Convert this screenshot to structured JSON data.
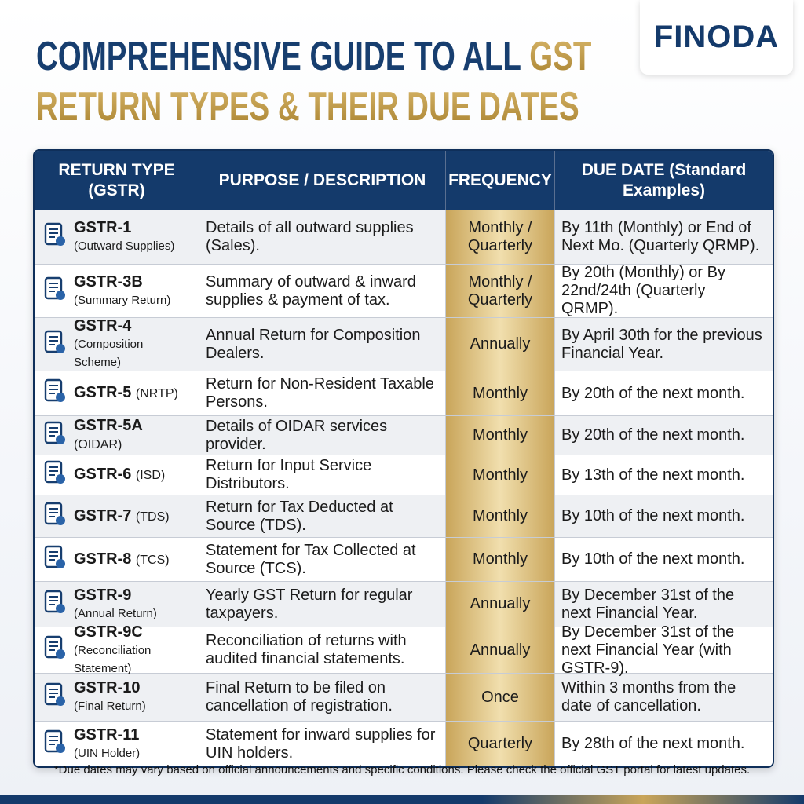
{
  "logo": "FINODA",
  "title": {
    "lines": [
      [
        {
          "text": "COMPREHENSIVE GUIDE TO ALL",
          "style": "navy"
        },
        {
          "text": "GST",
          "style": "gold"
        }
      ],
      [
        {
          "text": "RETURN TYPES & THEIR",
          "style": "gold"
        },
        {
          "text": "DUE DATES",
          "style": "gold"
        }
      ]
    ]
  },
  "table": {
    "headers": [
      "RETURN TYPE (GSTR)",
      "PURPOSE / DESCRIPTION",
      "FREQUENCY",
      "DUE DATE (Standard Examples)"
    ],
    "rows": [
      {
        "code": "GSTR-1",
        "sub": "(Outward Supplies)",
        "sub_position": "below",
        "description": "Details of all outward supplies (Sales).",
        "frequency": "Monthly / Quarterly",
        "due": "By 11th (Monthly) or End of Next Mo. (Quarterly QRMP)."
      },
      {
        "code": "GSTR-3B",
        "sub": "(Summary Return)",
        "sub_position": "below",
        "description": "Summary of outward & inward supplies & payment of tax.",
        "frequency": "Monthly / Quarterly",
        "due": "By 20th (Monthly) or By 22nd/24th (Quarterly QRMP)."
      },
      {
        "code": "GSTR-4",
        "sub": "(Composition Scheme)",
        "sub_position": "below",
        "description": "Annual Return for Composition Dealers.",
        "frequency": "Annually",
        "due": "By April 30th for the previous Financial Year."
      },
      {
        "code": "GSTR-5",
        "sub": "(NRTP)",
        "sub_position": "inline",
        "description": "Return for Non-Resident Taxable Persons.",
        "frequency": "Monthly",
        "due": "By 20th of the next month."
      },
      {
        "code": "GSTR-5A",
        "sub": "(OIDAR)",
        "sub_position": "inline",
        "description": "Details of OIDAR services provider.",
        "frequency": "Monthly",
        "due": "By 20th of the next month."
      },
      {
        "code": "GSTR-6",
        "sub": "(ISD)",
        "sub_position": "inline",
        "description": "Return for Input Service Distributors.",
        "frequency": "Monthly",
        "due": "By 13th of the next month."
      },
      {
        "code": "GSTR-7",
        "sub": "(TDS)",
        "sub_position": "inline",
        "description": "Return for Tax Deducted at Source (TDS).",
        "frequency": "Monthly",
        "due": "By 10th of the next month."
      },
      {
        "code": "GSTR-8",
        "sub": "(TCS)",
        "sub_position": "inline",
        "description": "Statement for Tax Collected at Source (TCS).",
        "frequency": "Monthly",
        "due": "By 10th of the next month."
      },
      {
        "code": "GSTR-9",
        "sub": "(Annual Return)",
        "sub_position": "below",
        "description": "Yearly GST Return for regular taxpayers.",
        "frequency": "Annually",
        "due": "By December 31st of the next Financial Year."
      },
      {
        "code": "GSTR-9C",
        "sub": "(Reconciliation Statement)",
        "sub_position": "below",
        "description": "Reconciliation of returns with audited financial statements.",
        "frequency": "Annually",
        "due": "By December 31st of the next Financial Year (with GSTR-9)."
      },
      {
        "code": "GSTR-10",
        "sub": "(Final Return)",
        "sub_position": "below",
        "description": "Final Return to be filed on cancellation of registration.",
        "frequency": "Once",
        "due": "Within 3 months from the date of cancellation."
      },
      {
        "code": "GSTR-11",
        "sub": "(UIN Holder)",
        "sub_position": "below",
        "description": "Statement for inward supplies for UIN holders.",
        "frequency": "Quarterly",
        "due": "By 28th of the next month."
      }
    ]
  },
  "footnote": "*Due dates may vary based on official announcements and specific conditions. Please check the official GST portal for latest updates."
}
